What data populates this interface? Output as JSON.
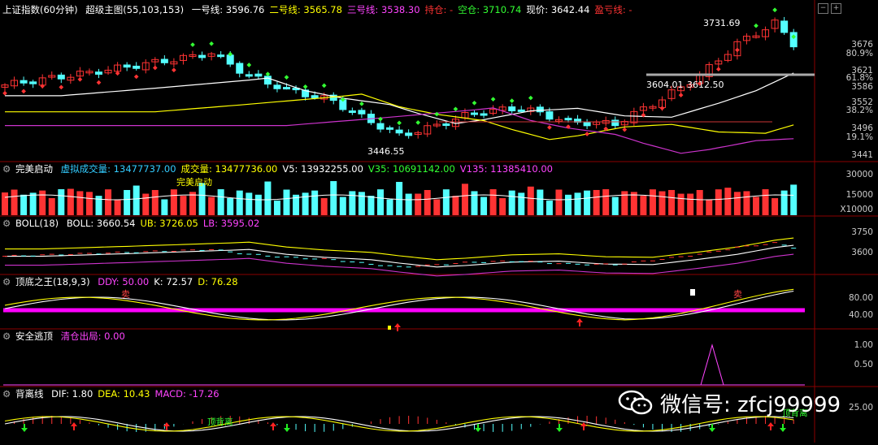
{
  "main": {
    "name": "上证指数(60分钟)",
    "indicator": "超级主图(55,103,153)",
    "items": [
      {
        "label": "一号线: 3596.76",
        "color": "#ffffff"
      },
      {
        "label": "二号线: 3565.78",
        "color": "#ffff00"
      },
      {
        "label": "三号线: 3538.30",
        "color": "#ff44ff"
      },
      {
        "label": "持仓: -",
        "color": "#ff3333"
      },
      {
        "label": "空仓: 3710.74",
        "color": "#33ff33"
      },
      {
        "label": "现价: 3642.44",
        "color": "#ffffff"
      },
      {
        "label": "盈亏线: -",
        "color": "#ff3333"
      }
    ],
    "axis": [
      {
        "label": "3676",
        "color": "#cccccc"
      },
      {
        "label": "80.9%",
        "color": "#cccccc"
      },
      {
        "label": "3621",
        "color": "#cccccc"
      },
      {
        "label": "61.8%",
        "color": "#cccccc"
      },
      {
        "label": "3586",
        "color": "#cccccc"
      },
      {
        "label": "3552",
        "color": "#cccccc"
      },
      {
        "label": "38.2%",
        "color": "#cccccc"
      },
      {
        "label": "3496",
        "color": "#cccccc"
      },
      {
        "label": "19.1%",
        "color": "#cccccc"
      },
      {
        "label": "3441",
        "color": "#cccccc"
      }
    ],
    "annotations": {
      "high": "3731.69",
      "low": "3446.55",
      "mid1": "3604.01",
      "mid2": "3612.50"
    }
  },
  "vol": {
    "name": "完美启动",
    "items": [
      {
        "label": "虚拟成交量: 13477737.00",
        "color": "#33ccff"
      },
      {
        "label": "成交量: 13477736.00",
        "color": "#ffff00"
      },
      {
        "label": "V5: 13932255.00",
        "color": "#ffffff"
      },
      {
        "label": "V35: 10691142.00",
        "color": "#33ff33"
      },
      {
        "label": "V135: 11385410.00",
        "color": "#ff44ff"
      }
    ],
    "axis": [
      {
        "label": "30000",
        "color": "#cccccc"
      },
      {
        "label": "15000",
        "color": "#cccccc"
      },
      {
        "label": "X10000",
        "color": "#cccccc"
      }
    ],
    "signal": "完美启动"
  },
  "boll": {
    "name": "BOLL(18)",
    "items": [
      {
        "label": "BOLL: 3660.54",
        "color": "#ffffff"
      },
      {
        "label": "UB: 3726.05",
        "color": "#ffff00"
      },
      {
        "label": "LB: 3595.02",
        "color": "#ff44ff"
      }
    ],
    "axis": [
      {
        "label": "3750",
        "color": "#cccccc"
      },
      {
        "label": "3600",
        "color": "#cccccc"
      }
    ]
  },
  "kdj": {
    "name": "顶底之王(18,9,3)",
    "items": [
      {
        "label": "DDY: 50.00",
        "color": "#ff44ff"
      },
      {
        "label": "K: 72.57",
        "color": "#ffffff"
      },
      {
        "label": "D: 76.28",
        "color": "#ffff00"
      }
    ],
    "axis": [
      {
        "label": "80.00",
        "color": "#cccccc"
      },
      {
        "label": "40.00",
        "color": "#cccccc"
      }
    ],
    "sell_label": "卖"
  },
  "escape": {
    "name": "安全逃顶",
    "items": [
      {
        "label": "清仓出局: 0.00",
        "color": "#ff44ff"
      }
    ],
    "axis": [
      {
        "label": "1.00",
        "color": "#cccccc"
      },
      {
        "label": "0.50",
        "color": "#cccccc"
      }
    ]
  },
  "macd": {
    "name": "背离线",
    "items": [
      {
        "label": "DIF: 1.80",
        "color": "#ffffff"
      },
      {
        "label": "DEA: 10.43",
        "color": "#ffff00"
      },
      {
        "label": "MACD: -17.26",
        "color": "#ff44ff"
      }
    ],
    "axis": [
      {
        "label": "25.00",
        "color": "#cccccc"
      }
    ],
    "signal_a": "顶背离",
    "signal_b": "顶背离"
  },
  "watermark": {
    "text": "微信号: zfcj99999"
  },
  "controls": {
    "minus": "−",
    "plus": "+"
  },
  "colors": {
    "up": "#ff3333",
    "down": "#54ffff",
    "bg": "#000000",
    "sep": "#8b0000"
  }
}
